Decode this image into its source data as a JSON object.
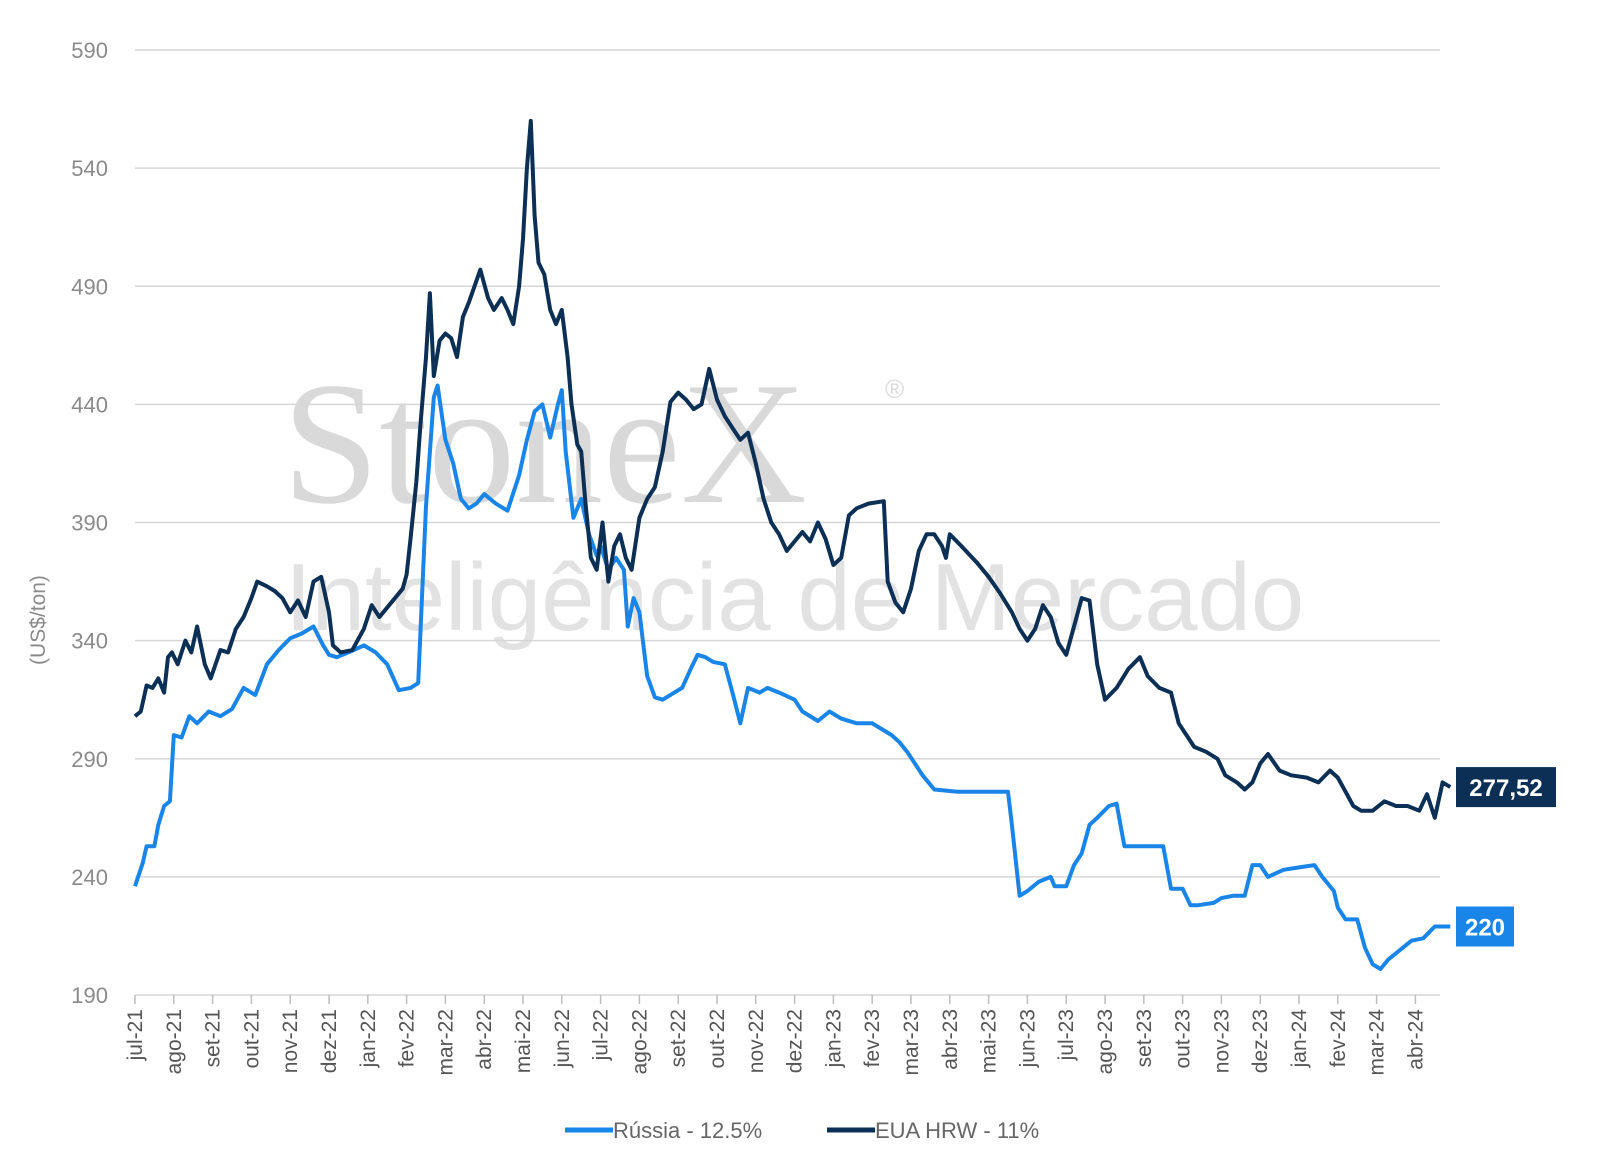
{
  "watermark": {
    "brand": "StoneX",
    "registered": "®",
    "tagline": "Inteligência de Mercado"
  },
  "chart_data": {
    "type": "line",
    "ylabel": "(US$/ton)",
    "xlabel": "",
    "title": "",
    "ylim": [
      190,
      590
    ],
    "yticks": [
      190,
      240,
      290,
      340,
      390,
      440,
      490,
      540,
      590
    ],
    "grid": "horizontal",
    "legend_position": "bottom-center",
    "categories": [
      "jul-21",
      "ago-21",
      "set-21",
      "out-21",
      "nov-21",
      "dez-21",
      "jan-22",
      "fev-22",
      "mar-22",
      "abr-22",
      "mai-22",
      "jun-22",
      "jul-22",
      "ago-22",
      "set-22",
      "out-22",
      "nov-22",
      "dez-22",
      "jan-23",
      "fev-23",
      "mar-23",
      "abr-23",
      "mai-23",
      "jun-23",
      "jul-23",
      "ago-23",
      "set-23",
      "out-23",
      "nov-23",
      "dez-23",
      "jan-24",
      "fev-24",
      "mar-24",
      "abr-24"
    ],
    "series": [
      {
        "name": "Rússia - 12.5%",
        "color": "#1a85e8",
        "end_label": "220",
        "points": [
          [
            0.0,
            236
          ],
          [
            0.2,
            246
          ],
          [
            0.3,
            253
          ],
          [
            0.5,
            253
          ],
          [
            0.6,
            262
          ],
          [
            0.75,
            270
          ],
          [
            0.9,
            272
          ],
          [
            1.0,
            300
          ],
          [
            1.2,
            299
          ],
          [
            1.4,
            308
          ],
          [
            1.6,
            305
          ],
          [
            1.9,
            310
          ],
          [
            2.2,
            308
          ],
          [
            2.5,
            311
          ],
          [
            2.8,
            320
          ],
          [
            3.1,
            317
          ],
          [
            3.4,
            330
          ],
          [
            3.7,
            336
          ],
          [
            4.0,
            341
          ],
          [
            4.3,
            343
          ],
          [
            4.6,
            346
          ],
          [
            4.85,
            338
          ],
          [
            5.0,
            334
          ],
          [
            5.2,
            333
          ],
          [
            5.5,
            335
          ],
          [
            5.9,
            338
          ],
          [
            6.2,
            335
          ],
          [
            6.5,
            330
          ],
          [
            6.8,
            319
          ],
          [
            7.1,
            320
          ],
          [
            7.3,
            322
          ],
          [
            7.5,
            397
          ],
          [
            7.7,
            443
          ],
          [
            7.8,
            448
          ],
          [
            8.0,
            425
          ],
          [
            8.2,
            415
          ],
          [
            8.4,
            400
          ],
          [
            8.6,
            396
          ],
          [
            8.8,
            398
          ],
          [
            9.0,
            402
          ],
          [
            9.3,
            398
          ],
          [
            9.6,
            395
          ],
          [
            9.9,
            410
          ],
          [
            10.1,
            425
          ],
          [
            10.3,
            437
          ],
          [
            10.5,
            440
          ],
          [
            10.7,
            426
          ],
          [
            10.9,
            440
          ],
          [
            11.0,
            446
          ],
          [
            11.1,
            420
          ],
          [
            11.3,
            392
          ],
          [
            11.5,
            400
          ],
          [
            11.7,
            385
          ],
          [
            11.9,
            376
          ],
          [
            12.0,
            380
          ],
          [
            12.2,
            370
          ],
          [
            12.4,
            375
          ],
          [
            12.6,
            370
          ],
          [
            12.7,
            346
          ],
          [
            12.85,
            358
          ],
          [
            13.0,
            352
          ],
          [
            13.2,
            325
          ],
          [
            13.4,
            316
          ],
          [
            13.6,
            315
          ],
          [
            13.9,
            318
          ],
          [
            14.1,
            320
          ],
          [
            14.35,
            329
          ],
          [
            14.5,
            334
          ],
          [
            14.7,
            333
          ],
          [
            14.9,
            331
          ],
          [
            15.2,
            330
          ],
          [
            15.4,
            318
          ],
          [
            15.6,
            305
          ],
          [
            15.8,
            320
          ],
          [
            16.1,
            318
          ],
          [
            16.3,
            320
          ],
          [
            16.6,
            318
          ],
          [
            17.0,
            315
          ],
          [
            17.2,
            310
          ],
          [
            17.6,
            306
          ],
          [
            17.9,
            310
          ],
          [
            18.2,
            307
          ],
          [
            18.6,
            305
          ],
          [
            19.0,
            305
          ],
          [
            19.5,
            300
          ],
          [
            19.7,
            297
          ],
          [
            19.9,
            293
          ],
          [
            20.3,
            283
          ],
          [
            20.6,
            277
          ],
          [
            21.2,
            276
          ],
          [
            21.8,
            276
          ],
          [
            22.5,
            276
          ],
          [
            22.6,
            262
          ],
          [
            22.8,
            232
          ],
          [
            23.0,
            234
          ],
          [
            23.3,
            238
          ],
          [
            23.6,
            240
          ],
          [
            23.7,
            236
          ],
          [
            24.0,
            236
          ],
          [
            24.2,
            245
          ],
          [
            24.4,
            250
          ],
          [
            24.6,
            262
          ],
          [
            24.8,
            265
          ],
          [
            25.1,
            270
          ],
          [
            25.3,
            271
          ],
          [
            25.5,
            253
          ],
          [
            25.8,
            253
          ],
          [
            26.5,
            253
          ],
          [
            26.7,
            235
          ],
          [
            27.0,
            235
          ],
          [
            27.2,
            228
          ],
          [
            27.4,
            228
          ],
          [
            27.8,
            229
          ],
          [
            28.0,
            231
          ],
          [
            28.3,
            232
          ],
          [
            28.6,
            232
          ],
          [
            28.8,
            245
          ],
          [
            29.0,
            245
          ],
          [
            29.2,
            240
          ],
          [
            29.6,
            243
          ],
          [
            30.0,
            244
          ],
          [
            30.4,
            245
          ],
          [
            30.6,
            240
          ],
          [
            30.9,
            234
          ],
          [
            31.0,
            227
          ],
          [
            31.2,
            222
          ],
          [
            31.5,
            222
          ],
          [
            31.7,
            210
          ],
          [
            31.9,
            203
          ],
          [
            32.1,
            201
          ],
          [
            32.3,
            205
          ],
          [
            32.6,
            209
          ],
          [
            32.9,
            213
          ],
          [
            33.2,
            214
          ],
          [
            33.5,
            219
          ],
          [
            33.9,
            219
          ]
        ]
      },
      {
        "name": "EUA HRW - 11%",
        "color": "#0b2f55",
        "end_label": "277,52",
        "points": [
          [
            0.0,
            308
          ],
          [
            0.15,
            310
          ],
          [
            0.3,
            321
          ],
          [
            0.45,
            320
          ],
          [
            0.6,
            324
          ],
          [
            0.75,
            318
          ],
          [
            0.85,
            333
          ],
          [
            0.95,
            335
          ],
          [
            1.1,
            330
          ],
          [
            1.3,
            340
          ],
          [
            1.45,
            335
          ],
          [
            1.6,
            346
          ],
          [
            1.8,
            330
          ],
          [
            1.95,
            324
          ],
          [
            2.2,
            336
          ],
          [
            2.4,
            335
          ],
          [
            2.6,
            345
          ],
          [
            2.8,
            350
          ],
          [
            3.0,
            358
          ],
          [
            3.15,
            365
          ],
          [
            3.4,
            363
          ],
          [
            3.6,
            361
          ],
          [
            3.8,
            358
          ],
          [
            4.0,
            352
          ],
          [
            4.2,
            357
          ],
          [
            4.4,
            350
          ],
          [
            4.6,
            365
          ],
          [
            4.8,
            367
          ],
          [
            5.0,
            352
          ],
          [
            5.1,
            338
          ],
          [
            5.3,
            335
          ],
          [
            5.6,
            336
          ],
          [
            5.9,
            345
          ],
          [
            6.1,
            355
          ],
          [
            6.3,
            350
          ],
          [
            6.6,
            356
          ],
          [
            6.9,
            362
          ],
          [
            7.0,
            368
          ],
          [
            7.1,
            383
          ],
          [
            7.25,
            407
          ],
          [
            7.35,
            430
          ],
          [
            7.5,
            460
          ],
          [
            7.6,
            487
          ],
          [
            7.7,
            452
          ],
          [
            7.85,
            467
          ],
          [
            8.0,
            470
          ],
          [
            8.15,
            468
          ],
          [
            8.3,
            460
          ],
          [
            8.45,
            477
          ],
          [
            8.6,
            483
          ],
          [
            8.75,
            490
          ],
          [
            8.9,
            497
          ],
          [
            9.1,
            485
          ],
          [
            9.25,
            480
          ],
          [
            9.45,
            485
          ],
          [
            9.6,
            480
          ],
          [
            9.75,
            474
          ],
          [
            9.9,
            490
          ],
          [
            10.0,
            510
          ],
          [
            10.1,
            540
          ],
          [
            10.2,
            560
          ],
          [
            10.3,
            520
          ],
          [
            10.4,
            500
          ],
          [
            10.55,
            495
          ],
          [
            10.7,
            480
          ],
          [
            10.85,
            474
          ],
          [
            11.0,
            480
          ],
          [
            11.15,
            460
          ],
          [
            11.25,
            440
          ],
          [
            11.4,
            423
          ],
          [
            11.5,
            420
          ],
          [
            11.6,
            400
          ],
          [
            11.75,
            375
          ],
          [
            11.9,
            370
          ],
          [
            12.05,
            390
          ],
          [
            12.2,
            365
          ],
          [
            12.35,
            380
          ],
          [
            12.5,
            385
          ],
          [
            12.65,
            375
          ],
          [
            12.8,
            370
          ],
          [
            13.0,
            392
          ],
          [
            13.2,
            400
          ],
          [
            13.4,
            405
          ],
          [
            13.6,
            420
          ],
          [
            13.8,
            441
          ],
          [
            14.0,
            445
          ],
          [
            14.2,
            442
          ],
          [
            14.4,
            438
          ],
          [
            14.6,
            440
          ],
          [
            14.8,
            455
          ],
          [
            15.0,
            442
          ],
          [
            15.2,
            435
          ],
          [
            15.4,
            430
          ],
          [
            15.6,
            425
          ],
          [
            15.8,
            428
          ],
          [
            16.0,
            415
          ],
          [
            16.2,
            400
          ],
          [
            16.4,
            390
          ],
          [
            16.6,
            385
          ],
          [
            16.8,
            378
          ],
          [
            17.0,
            382
          ],
          [
            17.2,
            386
          ],
          [
            17.4,
            382
          ],
          [
            17.6,
            390
          ],
          [
            17.8,
            383
          ],
          [
            18.0,
            372
          ],
          [
            18.2,
            375
          ],
          [
            18.4,
            393
          ],
          [
            18.6,
            396
          ],
          [
            18.9,
            398
          ],
          [
            19.3,
            399
          ],
          [
            19.4,
            365
          ],
          [
            19.6,
            356
          ],
          [
            19.8,
            352
          ],
          [
            20.0,
            362
          ],
          [
            20.2,
            378
          ],
          [
            20.4,
            385
          ],
          [
            20.6,
            385
          ],
          [
            20.8,
            380
          ],
          [
            20.9,
            375
          ],
          [
            21.0,
            385
          ],
          [
            21.3,
            380
          ],
          [
            21.7,
            373
          ],
          [
            22.0,
            367
          ],
          [
            22.3,
            360
          ],
          [
            22.6,
            352
          ],
          [
            22.8,
            345
          ],
          [
            23.0,
            340
          ],
          [
            23.2,
            345
          ],
          [
            23.4,
            355
          ],
          [
            23.6,
            350
          ],
          [
            23.8,
            339
          ],
          [
            24.0,
            334
          ],
          [
            24.2,
            346
          ],
          [
            24.4,
            358
          ],
          [
            24.6,
            357
          ],
          [
            24.8,
            330
          ],
          [
            25.0,
            315
          ],
          [
            25.3,
            320
          ],
          [
            25.6,
            328
          ],
          [
            25.9,
            333
          ],
          [
            26.1,
            325
          ],
          [
            26.4,
            320
          ],
          [
            26.7,
            318
          ],
          [
            26.9,
            305
          ],
          [
            27.1,
            300
          ],
          [
            27.3,
            295
          ],
          [
            27.6,
            293
          ],
          [
            27.9,
            290
          ],
          [
            28.1,
            283
          ],
          [
            28.4,
            280
          ],
          [
            28.6,
            277
          ],
          [
            28.8,
            280
          ],
          [
            29.0,
            288
          ],
          [
            29.2,
            292
          ],
          [
            29.5,
            285
          ],
          [
            29.8,
            283
          ],
          [
            30.2,
            282
          ],
          [
            30.5,
            280
          ],
          [
            30.8,
            285
          ],
          [
            31.0,
            282
          ],
          [
            31.2,
            276
          ],
          [
            31.4,
            270
          ],
          [
            31.6,
            268
          ],
          [
            31.9,
            268
          ],
          [
            32.2,
            272
          ],
          [
            32.5,
            270
          ],
          [
            32.8,
            270
          ],
          [
            33.1,
            268
          ],
          [
            33.3,
            275
          ],
          [
            33.5,
            265
          ],
          [
            33.7,
            280
          ],
          [
            33.9,
            278
          ]
        ]
      }
    ]
  }
}
